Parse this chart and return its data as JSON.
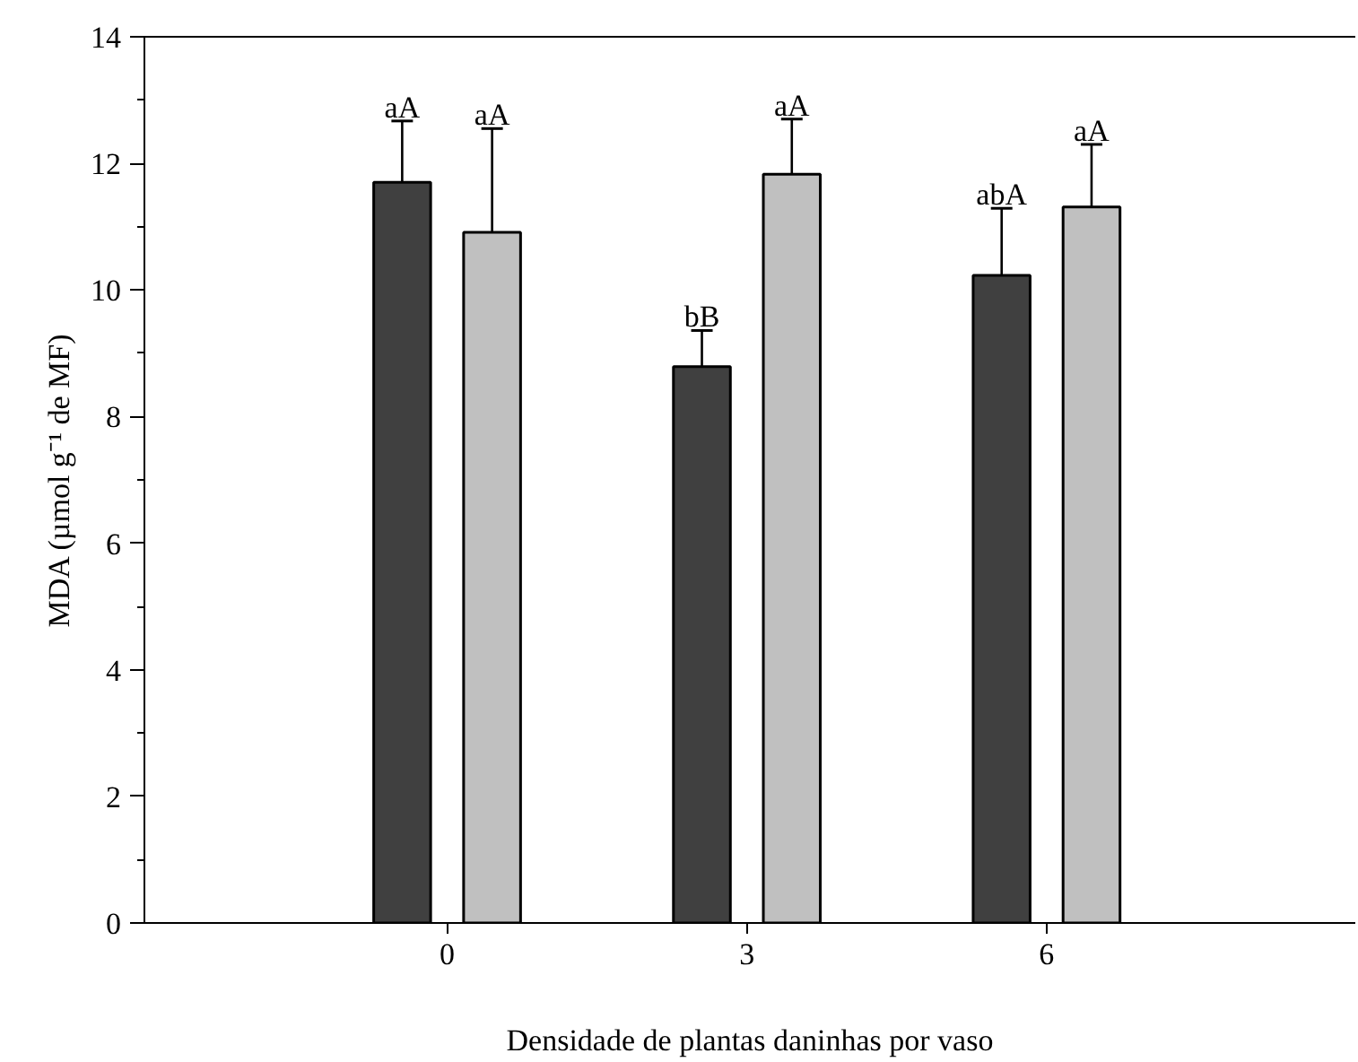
{
  "chart_data": {
    "type": "bar",
    "xlabel": "Densidade de plantas daninhas por vaso",
    "ylabel": "MDA (µmol g⁻¹ de MF)",
    "categories": [
      "0",
      "3",
      "6"
    ],
    "series": [
      {
        "color": "#404040",
        "values": [
          11.7,
          8.79,
          10.23
        ],
        "errors": [
          [
            11.7,
            12.67
          ],
          [
            8.79,
            9.36
          ],
          [
            10.23,
            11.29
          ]
        ]
      },
      {
        "color": "#c0c0c0",
        "values": [
          10.91,
          11.83,
          11.31
        ],
        "errors": [
          [
            10.91,
            12.55
          ],
          [
            11.83,
            12.7
          ],
          [
            11.31,
            12.3
          ]
        ]
      }
    ],
    "annotations": [
      "aA",
      "aA",
      "bB",
      "aA",
      "abA",
      "aA"
    ],
    "ylim": [
      0,
      14
    ],
    "yticks": [
      0,
      2,
      4,
      6,
      8,
      10,
      12,
      14
    ],
    "grid": false
  }
}
